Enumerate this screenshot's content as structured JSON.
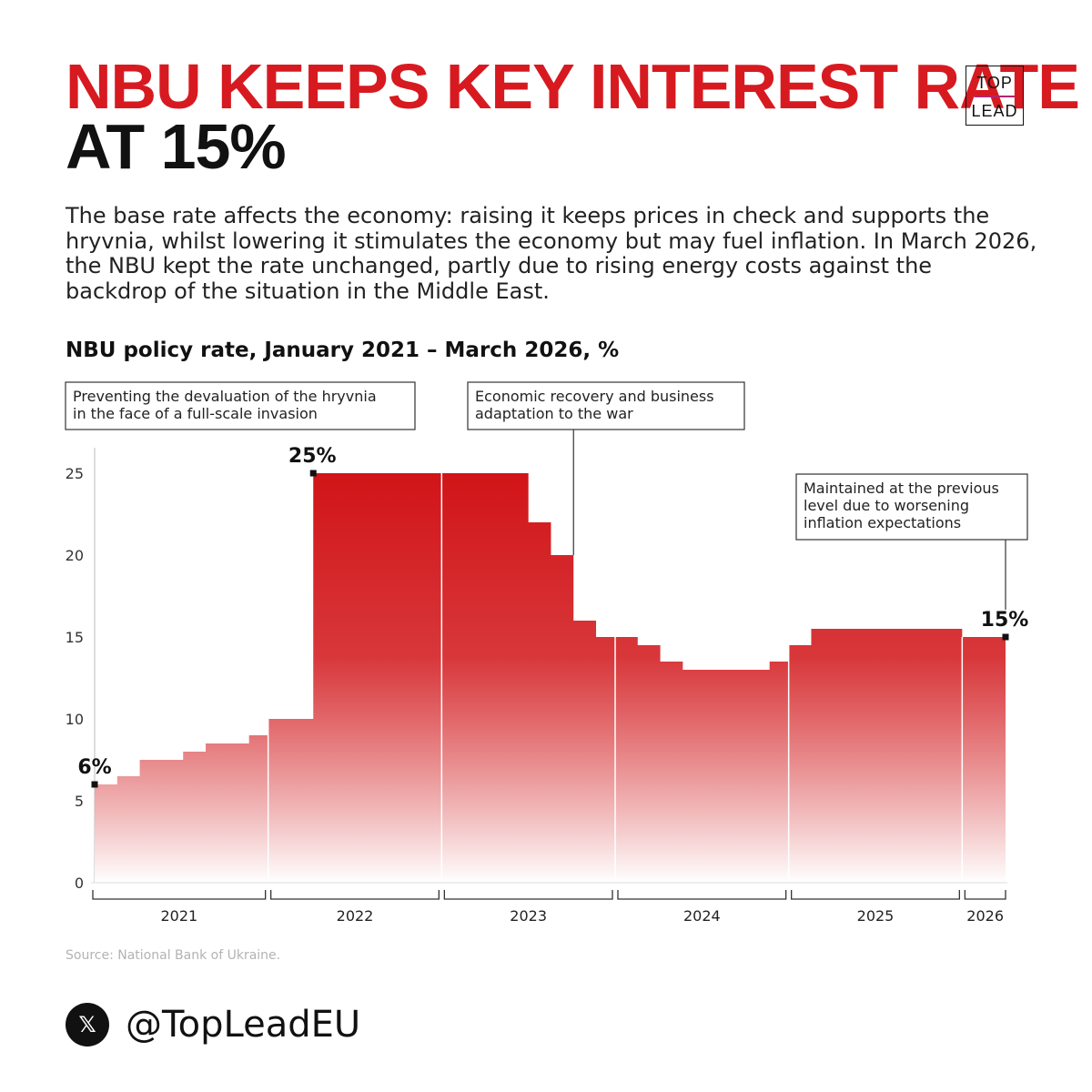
{
  "header": {
    "title_red": "NBU KEEPS KEY INTEREST RATE",
    "title_black": "AT 15%",
    "logo_top": "TOP",
    "logo_bottom": "LEAD"
  },
  "lede": "The base rate affects the economy: raising it keeps prices in check and supports the hryvnia, whilst lowering it stimulates the economy but may fuel inflation. In March 2026, the NBU kept the rate unchanged, partly due to rising energy costs against the backdrop of the situation in the Middle East.",
  "chart_data": {
    "type": "area",
    "subtype": "step",
    "title": "NBU policy rate, January 2021 – March 2026, %",
    "xlabel": "",
    "ylabel": "%",
    "ylim": [
      0,
      27
    ],
    "xlim": [
      2021.0,
      2026.25
    ],
    "yticks": [
      0,
      5,
      10,
      15,
      20,
      25
    ],
    "year_labels": [
      "2021",
      "2022",
      "2023",
      "2024",
      "2025",
      "2026"
    ],
    "year_starts": [
      2021,
      2022,
      2023,
      2024,
      2025,
      2026
    ],
    "steps": [
      {
        "start": 2021.0,
        "rate": 6
      },
      {
        "start": 2021.13,
        "rate": 6.5
      },
      {
        "start": 2021.26,
        "rate": 7.5
      },
      {
        "start": 2021.51,
        "rate": 8
      },
      {
        "start": 2021.64,
        "rate": 8.5
      },
      {
        "start": 2021.89,
        "rate": 9
      },
      {
        "start": 2022.0,
        "rate": 10
      },
      {
        "start": 2022.26,
        "rate": 25
      },
      {
        "start": 2023.0,
        "rate": 25
      },
      {
        "start": 2023.5,
        "rate": 22
      },
      {
        "start": 2023.63,
        "rate": 20
      },
      {
        "start": 2023.76,
        "rate": 16
      },
      {
        "start": 2023.89,
        "rate": 15
      },
      {
        "start": 2024.0,
        "rate": 15
      },
      {
        "start": 2024.13,
        "rate": 14.5
      },
      {
        "start": 2024.26,
        "rate": 13.5
      },
      {
        "start": 2024.39,
        "rate": 13
      },
      {
        "start": 2024.89,
        "rate": 13.5
      },
      {
        "start": 2025.0,
        "rate": 14.5
      },
      {
        "start": 2025.13,
        "rate": 15.5
      },
      {
        "start": 2026.0,
        "rate": 15
      }
    ],
    "end": 2026.25,
    "point_labels": [
      {
        "x": 2021.0,
        "y": 6,
        "text": "6%"
      },
      {
        "x": 2022.26,
        "y": 25,
        "text": "25%"
      },
      {
        "x": 2026.25,
        "y": 15,
        "text": "15%"
      }
    ],
    "annotations": [
      {
        "lines": [
          "Preventing the devaluation of the hryvnia",
          "in the face of a full-scale invasion"
        ]
      },
      {
        "lines": [
          "Economic recovery and business",
          "adaptation to the war"
        ],
        "target_x": 2023.76,
        "target_y": 20
      },
      {
        "lines": [
          "Maintained at the previous",
          "level due to worsening",
          "inflation expectations"
        ],
        "target_x": 2026.25,
        "target_y": 15
      }
    ],
    "colors": {
      "fill_top": "#d11418",
      "fill_bottom": "#ffffff",
      "separator": "#ffffff",
      "marker": "#111111"
    }
  },
  "source": "Source: National Bank of Ukraine.",
  "social": {
    "icon": "x-logo",
    "glyph": "𝕏",
    "handle": "@TopLeadEU"
  }
}
